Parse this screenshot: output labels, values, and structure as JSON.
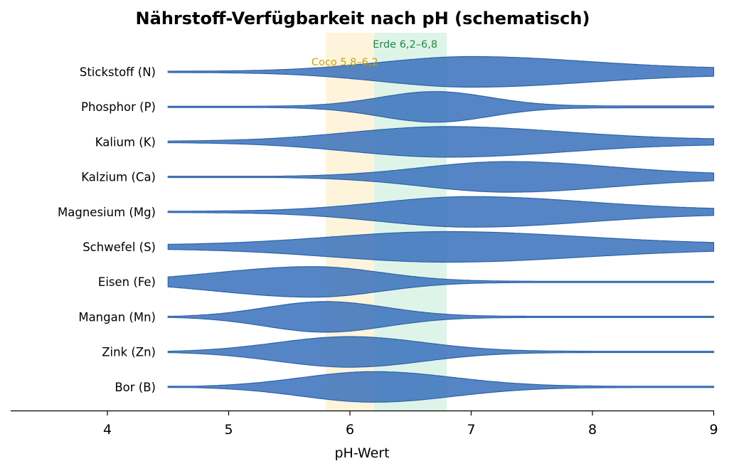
{
  "chart_data": {
    "type": "area",
    "title": "Nährstoff-Verfügbarkeit nach pH (schematisch)",
    "xlabel": "pH-Wert",
    "xlim": [
      3.2,
      9.0
    ],
    "xticks": [
      "4",
      "5",
      "6",
      "7",
      "8",
      "9"
    ],
    "x_start": 4.5,
    "color": "#3d74bd",
    "bands": [
      {
        "label": "Coco 5,8–6,2",
        "from": 5.8,
        "to": 6.2,
        "color": "#fdf0cf",
        "text_color": "#c9a000"
      },
      {
        "label": "Erde 6,2–6,8",
        "from": 6.2,
        "to": 6.8,
        "color": "#d4f0e2",
        "text_color": "#1f8a45"
      }
    ],
    "series": [
      {
        "name": "Stickstoff (N)",
        "peak": 7.0,
        "spread_left": 0.75,
        "spread_right": 0.95,
        "base": 0.2,
        "floor_left": 0.04
      },
      {
        "name": "Phosphor (P)",
        "peak": 6.7,
        "spread_left": 0.45,
        "spread_right": 0.45,
        "base": 0.06,
        "floor_left": 0.04
      },
      {
        "name": "Kalium (K)",
        "peak": 6.8,
        "spread_left": 0.8,
        "spread_right": 0.95,
        "base": 0.15,
        "floor_left": 0.04
      },
      {
        "name": "Kalzium (Ca)",
        "peak": 7.3,
        "spread_left": 0.7,
        "spread_right": 0.85,
        "base": 0.14,
        "floor_left": 0.02
      },
      {
        "name": "Magnesium (Mg)",
        "peak": 7.0,
        "spread_left": 0.75,
        "spread_right": 0.95,
        "base": 0.14,
        "floor_left": 0.04
      },
      {
        "name": "Schwefel (S)",
        "peak": 6.8,
        "spread_left": 0.95,
        "spread_right": 1.1,
        "base": 0.18,
        "floor_left": 0.12
      },
      {
        "name": "Eisen (Fe)",
        "peak": 5.7,
        "spread_left": 0.8,
        "spread_right": 0.55,
        "base": 0.04,
        "floor_left": 0.0
      },
      {
        "name": "Mangan (Mn)",
        "peak": 5.8,
        "spread_left": 0.5,
        "spread_right": 0.5,
        "base": 0.04,
        "floor_left": 0.0
      },
      {
        "name": "Zink (Zn)",
        "peak": 6.0,
        "spread_left": 0.6,
        "spread_right": 0.6,
        "base": 0.04,
        "floor_left": 0.0
      },
      {
        "name": "Bor (B)",
        "peak": 6.2,
        "spread_left": 0.6,
        "spread_right": 0.65,
        "base": 0.04,
        "floor_left": 0.0
      }
    ]
  }
}
